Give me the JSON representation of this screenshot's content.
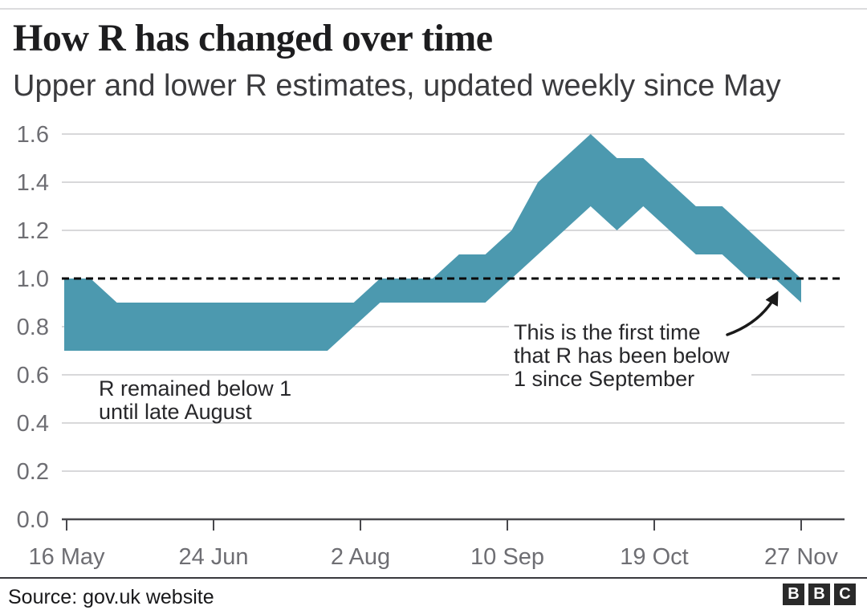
{
  "page": {
    "header": {
      "title": "How R has changed over time",
      "subtitle": "Upper and lower R estimates, updated weekly since May"
    },
    "footer": {
      "source": "Source: gov.uk website",
      "brand_letters": [
        "B",
        "B",
        "C"
      ]
    }
  },
  "chart_data": {
    "type": "area",
    "title": "How R has changed over time",
    "subtitle": "Upper and lower R estimates, updated weekly since May",
    "x_tick_labels": [
      "16 May",
      "24 Jun",
      "2 Aug",
      "10 Sep",
      "19 Oct",
      "27 Nov"
    ],
    "y_tick_labels": [
      "0.0",
      "0.2",
      "0.4",
      "0.6",
      "0.8",
      "1.0",
      "1.2",
      "1.4",
      "1.6"
    ],
    "ylim": [
      0,
      1.6
    ],
    "x_range": [
      "16 May",
      "27 Nov"
    ],
    "x_cadence": "weekly",
    "n_points": 29,
    "grid": true,
    "legend": false,
    "reference_line_y": 1.0,
    "series": [
      {
        "name": "lower estimate",
        "values": [
          0.7,
          0.7,
          0.7,
          0.7,
          0.7,
          0.7,
          0.7,
          0.7,
          0.7,
          0.7,
          0.7,
          0.8,
          0.9,
          0.9,
          0.9,
          0.9,
          0.9,
          1.0,
          1.1,
          1.2,
          1.3,
          1.2,
          1.3,
          1.2,
          1.1,
          1.1,
          1.0,
          1.0,
          0.9
        ]
      },
      {
        "name": "upper estimate",
        "values": [
          1.0,
          1.0,
          0.9,
          0.9,
          0.9,
          0.9,
          0.9,
          0.9,
          0.9,
          0.9,
          0.9,
          0.9,
          1.0,
          1.0,
          1.0,
          1.1,
          1.1,
          1.2,
          1.4,
          1.5,
          1.6,
          1.5,
          1.5,
          1.4,
          1.3,
          1.3,
          1.2,
          1.1,
          1.0
        ]
      }
    ],
    "annotations": [
      {
        "id": "below-1-until-august",
        "lines": [
          "R remained below 1",
          "until late August"
        ]
      },
      {
        "id": "first-time-below-1",
        "lines": [
          "This is the first time",
          "that R has been below",
          "1 since September"
        ],
        "arrow": true
      }
    ],
    "colors": {
      "band": "#4c99af",
      "grid": "#cbcbcd",
      "axis": "#48484c",
      "tick_label": "#6e6e73",
      "reference_line": "#0a0a0a",
      "annotation_text": "#27272a",
      "arrow": "#1a1a1a"
    }
  }
}
